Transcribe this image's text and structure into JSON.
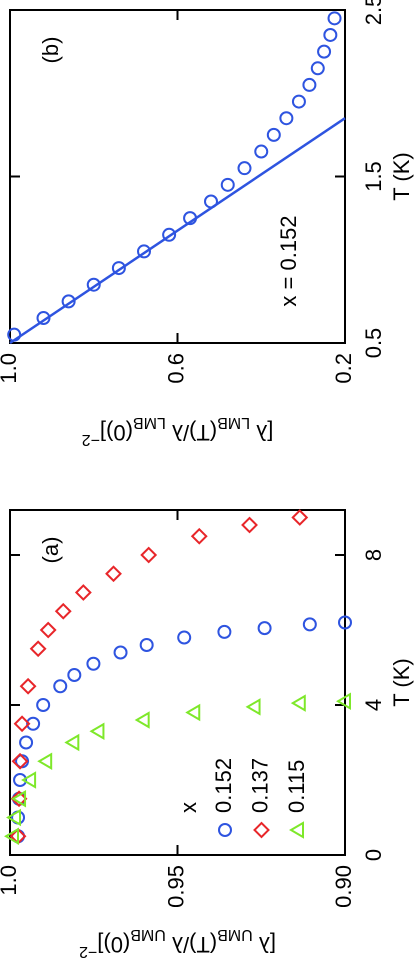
{
  "chart_data": [
    {
      "type": "scatter",
      "panel_label": "(a)",
      "xlabel": "T (K)",
      "ylabel": [
        "[λ ",
        "UMB",
        "(T)/λ ",
        "UMB",
        "(0)]",
        "−2"
      ],
      "xlim": [
        0,
        9.2
      ],
      "xticks": [
        0,
        4,
        8
      ],
      "ylim": [
        0.9,
        1.0
      ],
      "yticks": [
        {
          "value": 0.9,
          "label": "0.90"
        },
        0.95,
        {
          "value": 1.0,
          "label": "1.0"
        }
      ],
      "legend_title": "x",
      "legend": "lower left",
      "series": [
        {
          "name": "0.152",
          "color": "#2e54e0",
          "marker": "circle",
          "x": [
            0.5,
            1.0,
            1.5,
            2.0,
            2.5,
            3.0,
            3.5,
            4.0,
            4.5,
            4.8,
            5.1,
            5.4,
            5.6,
            5.8,
            5.95,
            6.05,
            6.15,
            6.2
          ],
          "values": [
            0.9976,
            0.9976,
            0.9973,
            0.997,
            0.9964,
            0.9952,
            0.9931,
            0.9901,
            0.985,
            0.9808,
            0.9751,
            0.967,
            0.9592,
            0.948,
            0.936,
            0.924,
            0.9105,
            0.9
          ]
        },
        {
          "name": "0.137",
          "color": "#e8262a",
          "marker": "diamond",
          "x": [
            0.5,
            1.5,
            2.5,
            3.5,
            4.5,
            5.5,
            6.0,
            6.5,
            7.0,
            7.5,
            8.0,
            8.5,
            8.8,
            9.0
          ],
          "values": [
            0.9976,
            0.9973,
            0.997,
            0.9964,
            0.9946,
            0.9916,
            0.9886,
            0.9841,
            0.9781,
            0.9691,
            0.9586,
            0.9435,
            0.9285,
            0.9135
          ]
        },
        {
          "name": "0.115",
          "color": "#7ee82a",
          "marker": "triangle",
          "x": [
            0.5,
            1.0,
            1.5,
            2.0,
            2.5,
            3.0,
            3.3,
            3.6,
            3.8,
            3.95,
            4.05,
            4.1
          ],
          "values": [
            0.9991,
            0.9985,
            0.997,
            0.994,
            0.9892,
            0.9811,
            0.9736,
            0.9601,
            0.945,
            0.927,
            0.9135,
            0.9
          ]
        }
      ]
    },
    {
      "type": "scatter",
      "panel_label": "(b)",
      "annotation": "x = 0.152",
      "xlabel": "T (K)",
      "ylabel": [
        "[λ ",
        "LMB",
        "(T)/λ ",
        "LMB",
        "(0)]",
        "−2"
      ],
      "xlim": [
        0.5,
        2.5
      ],
      "xticks": [
        0.5,
        1.5,
        2.5
      ],
      "ylim": [
        0.2,
        1.0
      ],
      "yticks": [
        0.2,
        0.6,
        {
          "value": 1.0,
          "label": "1.0"
        }
      ],
      "series": [
        {
          "color": "#2e54e0",
          "marker": "circle",
          "x": [
            0.55,
            0.65,
            0.75,
            0.85,
            0.95,
            1.05,
            1.15,
            1.25,
            1.35,
            1.45,
            1.55,
            1.65,
            1.75,
            1.85,
            1.95,
            2.05,
            2.15,
            2.25,
            2.35,
            2.45
          ],
          "values": [
            0.99,
            0.92,
            0.86,
            0.8,
            0.74,
            0.68,
            0.62,
            0.57,
            0.52,
            0.48,
            0.44,
            0.4,
            0.37,
            0.34,
            0.31,
            0.285,
            0.265,
            0.25,
            0.235,
            0.225
          ]
        },
        {
          "color": "#2e54e0",
          "marker": "none",
          "x": [
            0.5,
            1.85
          ],
          "values": [
            1.0,
            0.2
          ]
        }
      ]
    }
  ]
}
